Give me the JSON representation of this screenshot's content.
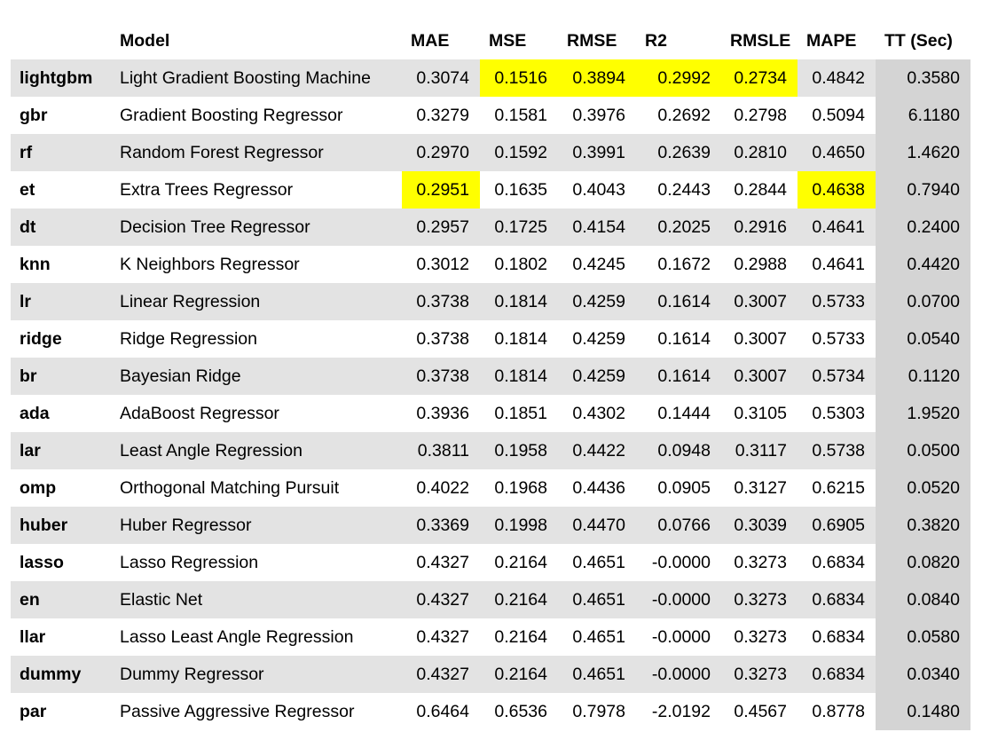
{
  "columns": [
    "",
    "Model",
    "MAE",
    "MSE",
    "RMSE",
    "R2",
    "RMSLE",
    "MAPE",
    "TT (Sec)"
  ],
  "rows": [
    {
      "id": "lightgbm",
      "model": "Light Gradient Boosting Machine",
      "values": [
        "0.3074",
        "0.1516",
        "0.3894",
        "0.2992",
        "0.2734",
        "0.4842",
        "0.3580"
      ],
      "highlight": [
        1,
        2,
        3,
        4
      ]
    },
    {
      "id": "gbr",
      "model": "Gradient Boosting Regressor",
      "values": [
        "0.3279",
        "0.1581",
        "0.3976",
        "0.2692",
        "0.2798",
        "0.5094",
        "6.1180"
      ],
      "highlight": []
    },
    {
      "id": "rf",
      "model": "Random Forest Regressor",
      "values": [
        "0.2970",
        "0.1592",
        "0.3991",
        "0.2639",
        "0.2810",
        "0.4650",
        "1.4620"
      ],
      "highlight": []
    },
    {
      "id": "et",
      "model": "Extra Trees Regressor",
      "values": [
        "0.2951",
        "0.1635",
        "0.4043",
        "0.2443",
        "0.2844",
        "0.4638",
        "0.7940"
      ],
      "highlight": [
        0,
        5
      ]
    },
    {
      "id": "dt",
      "model": "Decision Tree Regressor",
      "values": [
        "0.2957",
        "0.1725",
        "0.4154",
        "0.2025",
        "0.2916",
        "0.4641",
        "0.2400"
      ],
      "highlight": []
    },
    {
      "id": "knn",
      "model": "K Neighbors Regressor",
      "values": [
        "0.3012",
        "0.1802",
        "0.4245",
        "0.1672",
        "0.2988",
        "0.4641",
        "0.4420"
      ],
      "highlight": []
    },
    {
      "id": "lr",
      "model": "Linear Regression",
      "values": [
        "0.3738",
        "0.1814",
        "0.4259",
        "0.1614",
        "0.3007",
        "0.5733",
        "0.0700"
      ],
      "highlight": []
    },
    {
      "id": "ridge",
      "model": "Ridge Regression",
      "values": [
        "0.3738",
        "0.1814",
        "0.4259",
        "0.1614",
        "0.3007",
        "0.5733",
        "0.0540"
      ],
      "highlight": []
    },
    {
      "id": "br",
      "model": "Bayesian Ridge",
      "values": [
        "0.3738",
        "0.1814",
        "0.4259",
        "0.1614",
        "0.3007",
        "0.5734",
        "0.1120"
      ],
      "highlight": []
    },
    {
      "id": "ada",
      "model": "AdaBoost Regressor",
      "values": [
        "0.3936",
        "0.1851",
        "0.4302",
        "0.1444",
        "0.3105",
        "0.5303",
        "1.9520"
      ],
      "highlight": []
    },
    {
      "id": "lar",
      "model": "Least Angle Regression",
      "values": [
        "0.3811",
        "0.1958",
        "0.4422",
        "0.0948",
        "0.3117",
        "0.5738",
        "0.0500"
      ],
      "highlight": []
    },
    {
      "id": "omp",
      "model": "Orthogonal Matching Pursuit",
      "values": [
        "0.4022",
        "0.1968",
        "0.4436",
        "0.0905",
        "0.3127",
        "0.6215",
        "0.0520"
      ],
      "highlight": []
    },
    {
      "id": "huber",
      "model": "Huber Regressor",
      "values": [
        "0.3369",
        "0.1998",
        "0.4470",
        "0.0766",
        "0.3039",
        "0.6905",
        "0.3820"
      ],
      "highlight": []
    },
    {
      "id": "lasso",
      "model": "Lasso Regression",
      "values": [
        "0.4327",
        "0.2164",
        "0.4651",
        "-0.0000",
        "0.3273",
        "0.6834",
        "0.0820"
      ],
      "highlight": []
    },
    {
      "id": "en",
      "model": "Elastic Net",
      "values": [
        "0.4327",
        "0.2164",
        "0.4651",
        "-0.0000",
        "0.3273",
        "0.6834",
        "0.0840"
      ],
      "highlight": []
    },
    {
      "id": "llar",
      "model": "Lasso Least Angle Regression",
      "values": [
        "0.4327",
        "0.2164",
        "0.4651",
        "-0.0000",
        "0.3273",
        "0.6834",
        "0.0580"
      ],
      "highlight": []
    },
    {
      "id": "dummy",
      "model": "Dummy Regressor",
      "values": [
        "0.4327",
        "0.2164",
        "0.4651",
        "-0.0000",
        "0.3273",
        "0.6834",
        "0.0340"
      ],
      "highlight": []
    },
    {
      "id": "par",
      "model": "Passive Aggressive Regressor",
      "values": [
        "0.6464",
        "0.6536",
        "0.7978",
        "-2.0192",
        "0.4567",
        "0.8778",
        "0.1480"
      ],
      "highlight": []
    }
  ],
  "colors": {
    "highlight": "#ffff00",
    "stripe": "#e3e3e3",
    "tt_column": "#d4d4d4"
  }
}
